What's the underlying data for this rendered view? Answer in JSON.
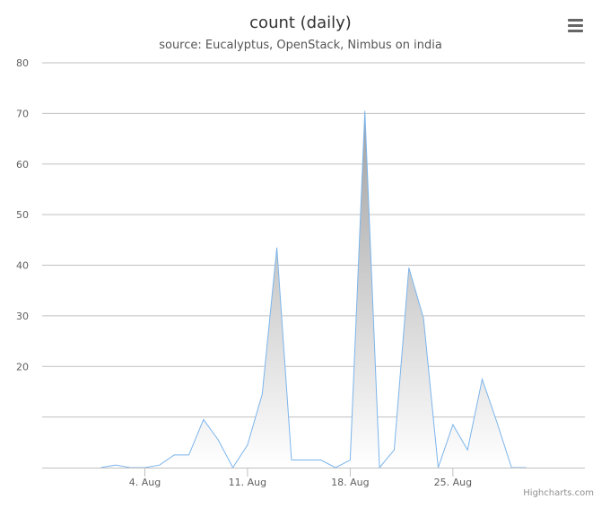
{
  "header": {
    "title": "count (daily)",
    "subtitle": "source: Eucalyptus, OpenStack, Nimbus on india",
    "menu_icon": "hamburger-menu-icon"
  },
  "credit": "Highcharts.com",
  "colors": {
    "series_line": "#7cb5ec",
    "area_fill_top": "#a0a0a0",
    "area_fill_bottom": "#ffffff",
    "grid": "#c0c0c0",
    "text": "#606060"
  },
  "chart_data": {
    "type": "area",
    "title": "count (daily)",
    "subtitle": "source: Eucalyptus, OpenStack, Nimbus on india",
    "xlabel": "",
    "ylabel": "",
    "x_type": "datetime",
    "x_tick_labels": [
      "4. Aug",
      "11. Aug",
      "18. Aug",
      "25. Aug"
    ],
    "x_tick_dates": [
      "Aug 4",
      "Aug 11",
      "Aug 18",
      "Aug 25"
    ],
    "xlim": [
      "Jul 28",
      "Sep 3"
    ],
    "y_tick_labels": [
      "20",
      "30",
      "40",
      "50",
      "60",
      "70",
      "80"
    ],
    "ylim": [
      0,
      80
    ],
    "grid": true,
    "legend": false,
    "series": [
      {
        "x": [
          "Aug 1",
          "Aug 2",
          "Aug 3",
          "Aug 4",
          "Aug 5",
          "Aug 6",
          "Aug 7",
          "Aug 8",
          "Aug 9",
          "Aug 10",
          "Aug 11",
          "Aug 12",
          "Aug 13",
          "Aug 14",
          "Aug 15",
          "Aug 16",
          "Aug 17",
          "Aug 18",
          "Aug 19",
          "Aug 20",
          "Aug 21",
          "Aug 22",
          "Aug 23",
          "Aug 24",
          "Aug 25",
          "Aug 26",
          "Aug 27",
          "Aug 28",
          "Aug 29",
          "Aug 30"
        ],
        "values": [
          0,
          0.5,
          0,
          0,
          0.5,
          2.5,
          2.5,
          9.5,
          5.5,
          0,
          4.5,
          14.5,
          43.5,
          1.5,
          1.5,
          1.5,
          0,
          1.5,
          70.5,
          0,
          3.5,
          39.5,
          29.5,
          0,
          8.5,
          3.5,
          17.5,
          9,
          0,
          0
        ]
      }
    ]
  }
}
